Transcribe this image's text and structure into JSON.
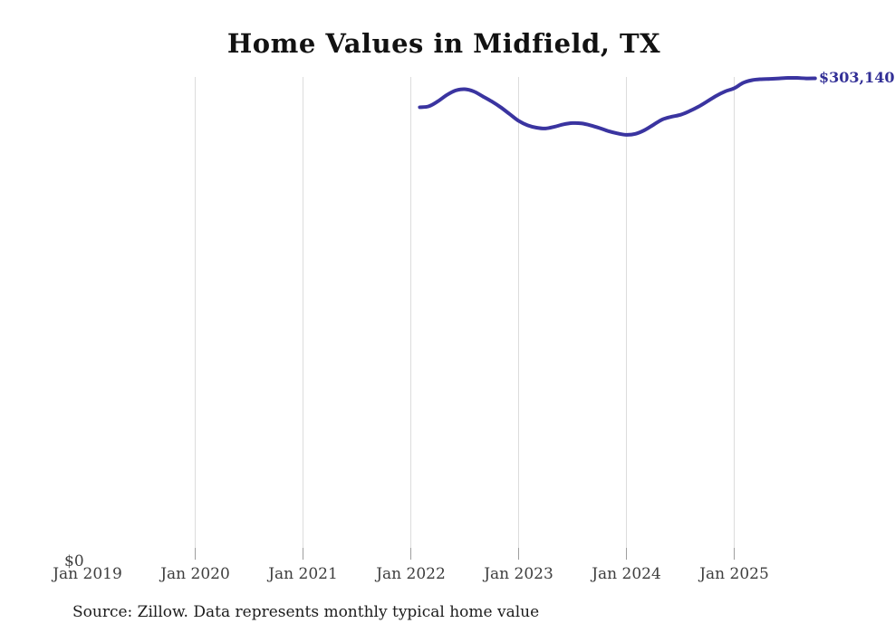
{
  "chart": {
    "title": "Home Values in Midfield, TX",
    "end_label": "$303,140",
    "y_zero_label": "$0",
    "line_color": "#3a34a0",
    "label_color": "#322f96",
    "gridline_color": "#dcdcdc",
    "tick_color": "#9e9e9e"
  },
  "footer": {
    "source": "Source: Zillow. Data represents monthly typical home value"
  },
  "chart_data": {
    "type": "line",
    "title": "Home Values in Midfield, TX",
    "xlabel": "",
    "ylabel": "",
    "x_tick_labels": [
      "Jan 2019",
      "Jan 2020",
      "Jan 2021",
      "Jan 2022",
      "Jan 2023",
      "Jan 2024",
      "Jan 2025"
    ],
    "y_tick_labels": [
      "$0"
    ],
    "ylim": [
      0,
      304000
    ],
    "grid": "vertical-only",
    "legend": "none",
    "last_point_label": "$303,140",
    "series": [
      {
        "name": "Monthly typical home value",
        "x": [
          "2022-01",
          "2022-02",
          "2022-03",
          "2022-04",
          "2022-05",
          "2022-06",
          "2022-07",
          "2022-08",
          "2022-09",
          "2022-10",
          "2022-11",
          "2022-12",
          "2023-01",
          "2023-02",
          "2023-03",
          "2023-04",
          "2023-05",
          "2023-06",
          "2023-07",
          "2023-08",
          "2023-09",
          "2023-10",
          "2023-11",
          "2023-12",
          "2024-01",
          "2024-02",
          "2024-03",
          "2024-04",
          "2024-05",
          "2024-06",
          "2024-07",
          "2024-08",
          "2024-09",
          "2024-10",
          "2024-11",
          "2024-12",
          "2025-01",
          "2025-02",
          "2025-03",
          "2025-04",
          "2025-05",
          "2025-06",
          "2025-07",
          "2025-08",
          "2025-09"
        ],
        "values": [
          284900,
          285500,
          288600,
          292600,
          295500,
          296300,
          294900,
          291800,
          288600,
          284900,
          280600,
          276300,
          273500,
          272000,
          271500,
          272600,
          274100,
          274900,
          274700,
          273500,
          271800,
          269800,
          268400,
          267500,
          268100,
          270400,
          273800,
          277200,
          278900,
          280100,
          282400,
          285200,
          288600,
          292100,
          294900,
          296900,
          300300,
          302000,
          302600,
          302800,
          303100,
          303400,
          303400,
          303100,
          303140
        ]
      }
    ]
  }
}
